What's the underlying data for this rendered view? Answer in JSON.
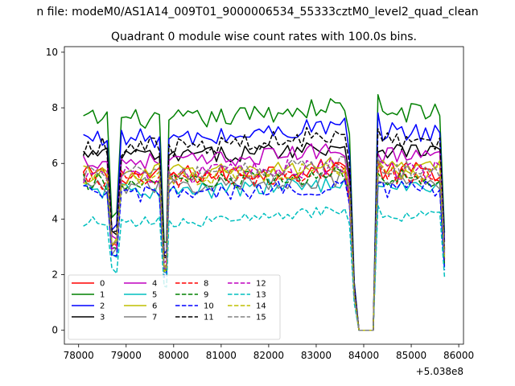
{
  "header": {
    "filename_text": "n file: modeM0/AS1A14_009T01_9000006534_55333cztM0_level2_quad_clean"
  },
  "chart_data": {
    "type": "line",
    "title": "Quadrant 0 module wise count rates with 100.0s bins.",
    "xlabel": "",
    "ylabel": "",
    "x_offset_label": "+5.038e8",
    "xlim": [
      77700,
      86100
    ],
    "ylim": [
      -0.5,
      10.2
    ],
    "x_ticks": [
      78000,
      79000,
      80000,
      81000,
      82000,
      83000,
      84000,
      85000,
      86000
    ],
    "x_tick_labels": [
      "78000",
      "79000",
      "80000",
      "81000",
      "82000",
      "83000",
      "84000",
      "85000",
      "86000"
    ],
    "y_ticks": [
      0,
      2,
      4,
      6,
      8,
      10
    ],
    "y_tick_labels": [
      "0",
      "2",
      "4",
      "6",
      "8",
      "10"
    ],
    "grid": false,
    "legend_placement": "lower-left",
    "legend_columns": 4,
    "x_range": {
      "start": 78100,
      "end": 85700,
      "step": 100
    },
    "profile_levels": {
      "dip1": [
        78700,
        78800,
        0.55
      ],
      "dip2": [
        79800,
        79850,
        0.4
      ],
      "gap_edges": [
        83700,
        83800,
        83900,
        84000,
        84300,
        84400
      ],
      "gap_values": [
        0.22,
        0.0,
        0.0,
        0.0
      ],
      "end_drop": [
        85700,
        0.45
      ]
    },
    "series": [
      {
        "name": "0",
        "color": "#ff0000",
        "dash": "solid",
        "level": 5.6,
        "trend": 0.3,
        "noise": 0.35
      },
      {
        "name": "1",
        "color": "#008000",
        "dash": "solid",
        "level": 7.6,
        "trend": 0.6,
        "noise": 0.35
      },
      {
        "name": "2",
        "color": "#0000ff",
        "dash": "solid",
        "level": 6.9,
        "trend": 0.6,
        "noise": 0.35
      },
      {
        "name": "3",
        "color": "#000000",
        "dash": "solid",
        "level": 6.3,
        "trend": 0.4,
        "noise": 0.3
      },
      {
        "name": "4",
        "color": "#bf00bf",
        "dash": "solid",
        "level": 6.1,
        "trend": 0.5,
        "noise": 0.3
      },
      {
        "name": "5",
        "color": "#00bfbf",
        "dash": "solid",
        "level": 5.0,
        "trend": 0.4,
        "noise": 0.3
      },
      {
        "name": "6",
        "color": "#bfbf00",
        "dash": "solid",
        "level": 5.7,
        "trend": 0.3,
        "noise": 0.3
      },
      {
        "name": "7",
        "color": "#808080",
        "dash": "solid",
        "level": 5.2,
        "trend": 0.3,
        "noise": 0.3
      },
      {
        "name": "8",
        "color": "#ff0000",
        "dash": "dashed",
        "level": 5.4,
        "trend": 0.4,
        "noise": 0.35
      },
      {
        "name": "9",
        "color": "#008000",
        "dash": "dashed",
        "level": 5.3,
        "trend": 0.4,
        "noise": 0.35
      },
      {
        "name": "10",
        "color": "#0000ff",
        "dash": "dashed",
        "level": 4.9,
        "trend": 0.4,
        "noise": 0.3
      },
      {
        "name": "11",
        "color": "#000000",
        "dash": "dashed",
        "level": 6.6,
        "trend": 0.6,
        "noise": 0.35
      },
      {
        "name": "12",
        "color": "#bf00bf",
        "dash": "dashed",
        "level": 5.6,
        "trend": 0.4,
        "noise": 0.35
      },
      {
        "name": "13",
        "color": "#00bfbf",
        "dash": "dashed",
        "level": 3.9,
        "trend": 0.5,
        "noise": 0.2
      },
      {
        "name": "14",
        "color": "#bfbf00",
        "dash": "dashed",
        "level": 5.5,
        "trend": 0.4,
        "noise": 0.3
      },
      {
        "name": "15",
        "color": "#808080",
        "dash": "dashed",
        "level": 5.6,
        "trend": 0.4,
        "noise": 0.35
      }
    ]
  }
}
